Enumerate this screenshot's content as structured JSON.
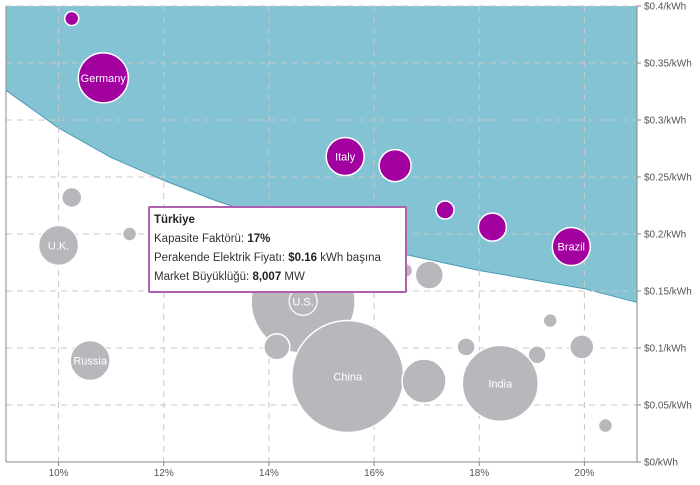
{
  "chart_data": {
    "type": "scatter",
    "subtype": "bubble",
    "title": "",
    "xlabel": "",
    "ylabel": "",
    "xlim": [
      9,
      21
    ],
    "ylim": [
      0,
      0.4
    ],
    "x_ticks": [
      10,
      12,
      14,
      16,
      18,
      20
    ],
    "x_tick_labels": [
      "10%",
      "12%",
      "14%",
      "16%",
      "18%",
      "20%"
    ],
    "y_ticks": [
      0,
      0.05,
      0.1,
      0.15,
      0.2,
      0.25,
      0.3,
      0.35,
      0.4
    ],
    "y_tick_labels": [
      "$0/kWh",
      "$0.05/kWh",
      "$0.1/kWh",
      "$0.15/kWh",
      "$0.2/kWh",
      "$0.25/kWh",
      "$0.3/kWh",
      "$0.35/kWh",
      "$0.4/kWh"
    ],
    "grid": true,
    "colors": {
      "region_fill": "#84c3d3",
      "region_edge": "#4a9ab6",
      "bubble_above": "#a300a0",
      "bubble_below": "#b9b7bc",
      "bubble_stroke": "#ffffff",
      "grid": "#c8c8c8"
    },
    "threshold_curve": {
      "x": [
        9,
        10,
        11,
        12,
        13,
        14,
        15,
        16,
        17,
        18,
        19,
        20,
        21
      ],
      "y": [
        0.326,
        0.293,
        0.267,
        0.247,
        0.229,
        0.214,
        0.2,
        0.188,
        0.178,
        0.168,
        0.16,
        0.152,
        0.14
      ]
    },
    "bubbles": [
      {
        "label": "",
        "x": 10.25,
        "y": 0.389,
        "r": 7,
        "color": "#a300a0"
      },
      {
        "label": "Germany",
        "x": 10.85,
        "y": 0.337,
        "r": 25,
        "color": "#a300a0"
      },
      {
        "label": "Italy",
        "x": 15.45,
        "y": 0.268,
        "r": 19,
        "color": "#a300a0"
      },
      {
        "label": "",
        "x": 16.4,
        "y": 0.26,
        "r": 16,
        "color": "#a300a0"
      },
      {
        "label": "",
        "x": 17.35,
        "y": 0.221,
        "r": 9,
        "color": "#a300a0"
      },
      {
        "label": "",
        "x": 18.25,
        "y": 0.206,
        "r": 14,
        "color": "#a300a0"
      },
      {
        "label": "Brazil",
        "x": 19.75,
        "y": 0.189,
        "r": 19,
        "color": "#a300a0"
      },
      {
        "label": "",
        "x": 10.25,
        "y": 0.232,
        "r": 10,
        "color": "#b9b7bc"
      },
      {
        "label": "U.K.",
        "x": 10.0,
        "y": 0.19,
        "r": 20,
        "color": "#b9b7bc"
      },
      {
        "label": "",
        "x": 11.35,
        "y": 0.2,
        "r": 7,
        "color": "#b9b7bc"
      },
      {
        "label": "",
        "x": 12.85,
        "y": 0.205,
        "r": 16,
        "color": "#b9b7bc"
      },
      {
        "label": "",
        "x": 15.0,
        "y": 0.188,
        "r": 16,
        "color": "#b9b7bc"
      },
      {
        "label": "",
        "x": 16.6,
        "y": 0.168,
        "r": 7,
        "color": "#b9b7bc"
      },
      {
        "label": "",
        "x": 17.05,
        "y": 0.164,
        "r": 14,
        "color": "#b9b7bc"
      },
      {
        "label": "U.S.",
        "x": 14.65,
        "y": 0.141,
        "r": 52,
        "color": "#b9b7bc"
      },
      {
        "label": "",
        "x": 14.15,
        "y": 0.101,
        "r": 13,
        "color": "#b9b7bc"
      },
      {
        "label": "",
        "x": 17.75,
        "y": 0.101,
        "r": 9,
        "color": "#b9b7bc"
      },
      {
        "label": "",
        "x": 19.35,
        "y": 0.124,
        "r": 7,
        "color": "#b9b7bc"
      },
      {
        "label": "",
        "x": 19.1,
        "y": 0.094,
        "r": 9,
        "color": "#b9b7bc"
      },
      {
        "label": "",
        "x": 19.95,
        "y": 0.101,
        "r": 12,
        "color": "#b9b7bc"
      },
      {
        "label": "Russia",
        "x": 10.6,
        "y": 0.089,
        "r": 20,
        "color": "#b9b7bc"
      },
      {
        "label": "China",
        "x": 15.5,
        "y": 0.075,
        "r": 56,
        "color": "#b9b7bc"
      },
      {
        "label": "",
        "x": 16.95,
        "y": 0.071,
        "r": 22,
        "color": "#b9b7bc"
      },
      {
        "label": "India",
        "x": 18.4,
        "y": 0.069,
        "r": 38,
        "color": "#b9b7bc"
      },
      {
        "label": "",
        "x": 20.4,
        "y": 0.032,
        "r": 7,
        "color": "#b9b7bc"
      }
    ],
    "tooltip": {
      "title": "Türkiye",
      "row1_label": "Kapasite Faktörü: ",
      "row1_value": "17%",
      "row2_label": "Perakende Elektrik Fiyatı: ",
      "row2_value": "$0.16",
      "row2_suffix": " kWh başına",
      "row3_label": "Market Büyüklüğü: ",
      "row3_value": "8,007",
      "row3_suffix": " MW"
    }
  }
}
